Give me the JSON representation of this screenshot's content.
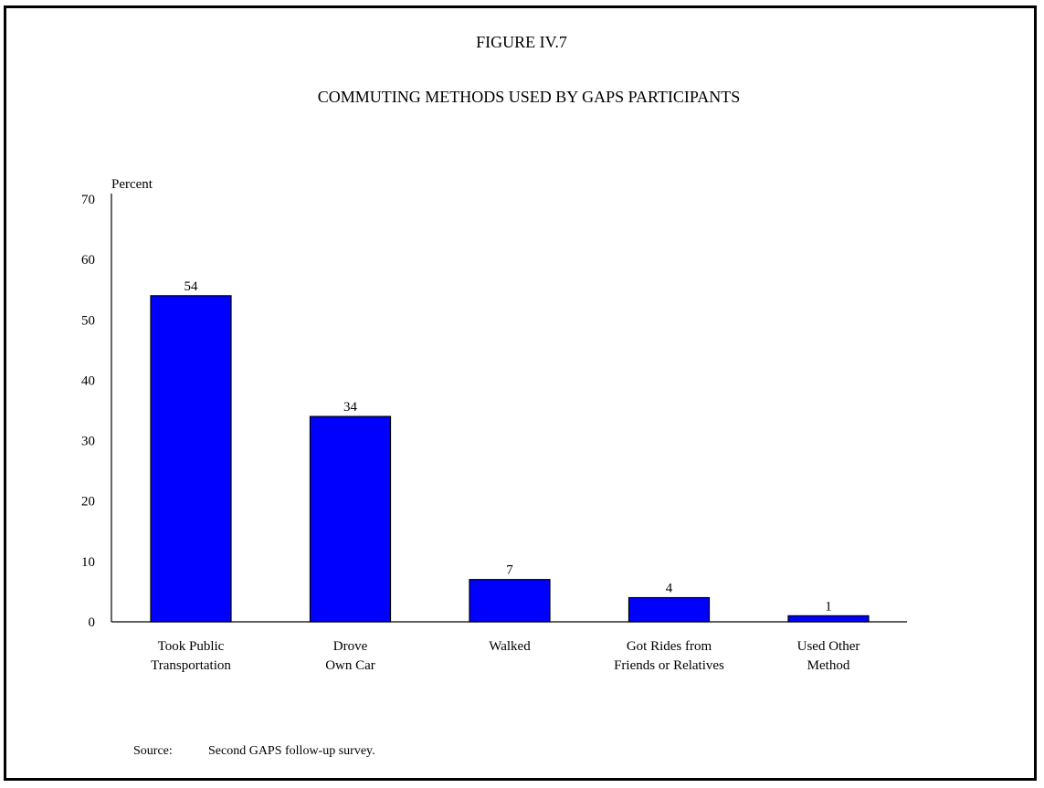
{
  "figure_label": "FIGURE IV.7",
  "source": {
    "label": "Source:",
    "text": "Second GAPS follow-up survey."
  },
  "colors": {
    "bar_fill": "#0000FF",
    "bar_stroke": "#000000",
    "frame": "#000000",
    "background": "#FFFFFF"
  },
  "chart_data": {
    "type": "bar",
    "title": "COMMUTING METHODS USED BY GAPS PARTICIPANTS",
    "ylabel": "Percent",
    "xlabel": "",
    "categories": [
      [
        "Took Public",
        "Transportation"
      ],
      [
        "Drove",
        "Own Car"
      ],
      [
        "Walked"
      ],
      [
        "Got Rides from",
        "Friends or Relatives"
      ],
      [
        "Used Other",
        "Method"
      ]
    ],
    "values": [
      54,
      34,
      7,
      4,
      1
    ],
    "data_labels": [
      "54",
      "34",
      "7",
      "4",
      "1"
    ],
    "ylim": [
      0,
      70
    ],
    "yticks": [
      0,
      10,
      20,
      30,
      40,
      50,
      60,
      70
    ],
    "grid": false,
    "legend": "none"
  }
}
